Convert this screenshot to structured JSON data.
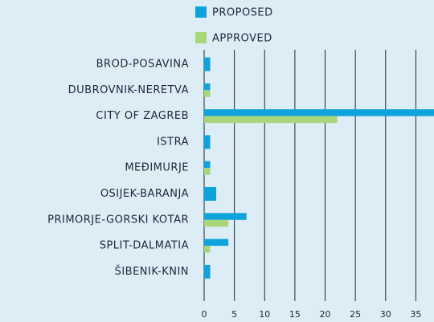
{
  "chart_data": {
    "type": "bar",
    "orientation": "horizontal",
    "categories": [
      "BROD-POSAVINA",
      "DUBROVNIK-NERETVA",
      "CITY OF ZAGREB",
      "ISTRA",
      "MEĐIMURJE",
      "OSIJEK-BARANJA",
      "PRIMORJE-GORSKI KOTAR",
      "SPLIT-DALMATIA",
      "ŠIBENIK-KNIN"
    ],
    "series": [
      {
        "name": "PROPOSED",
        "color": "#0fa3dc",
        "values": [
          1,
          1,
          38,
          1,
          1,
          2,
          7,
          4,
          1
        ]
      },
      {
        "name": "APPROVED",
        "color": "#a8d67a",
        "values": [
          null,
          1,
          22,
          null,
          1,
          null,
          4,
          1,
          null
        ]
      }
    ],
    "xlim": [
      0,
      38
    ],
    "xticks": [
      0,
      5,
      10,
      15,
      20,
      25,
      30,
      35
    ],
    "grid": true,
    "legend": "top"
  }
}
